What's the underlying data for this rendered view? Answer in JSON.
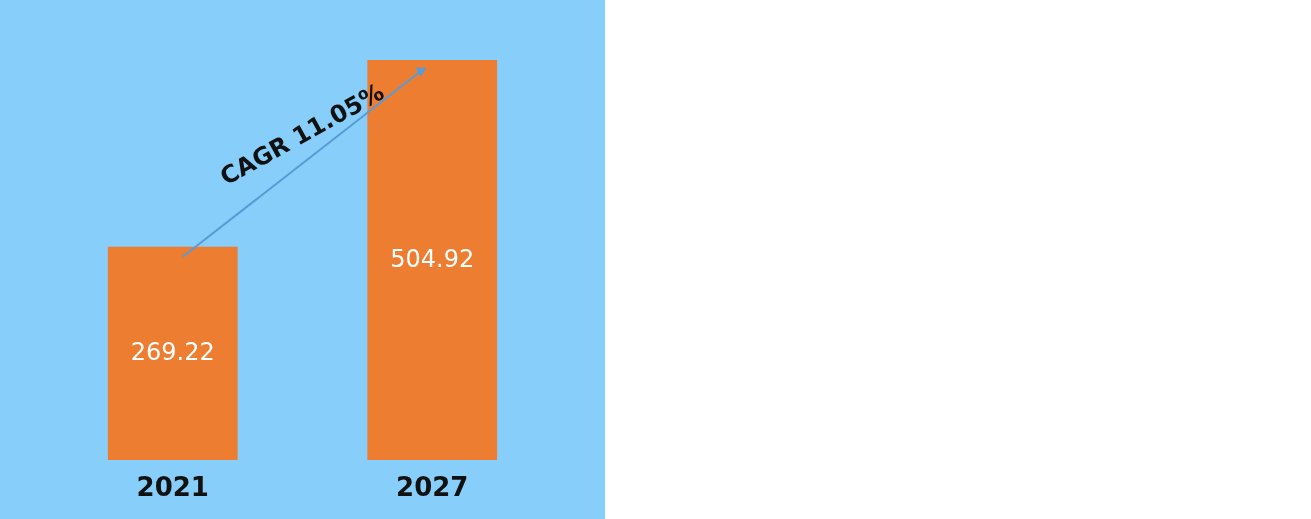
{
  "chart_data": {
    "type": "bar",
    "categories": [
      "2021",
      "2027"
    ],
    "values": [
      269.22,
      504.92
    ],
    "color": "#ed7d31",
    "data_labels": true,
    "annotations": [
      "CAGR 11.05%"
    ]
  }
}
